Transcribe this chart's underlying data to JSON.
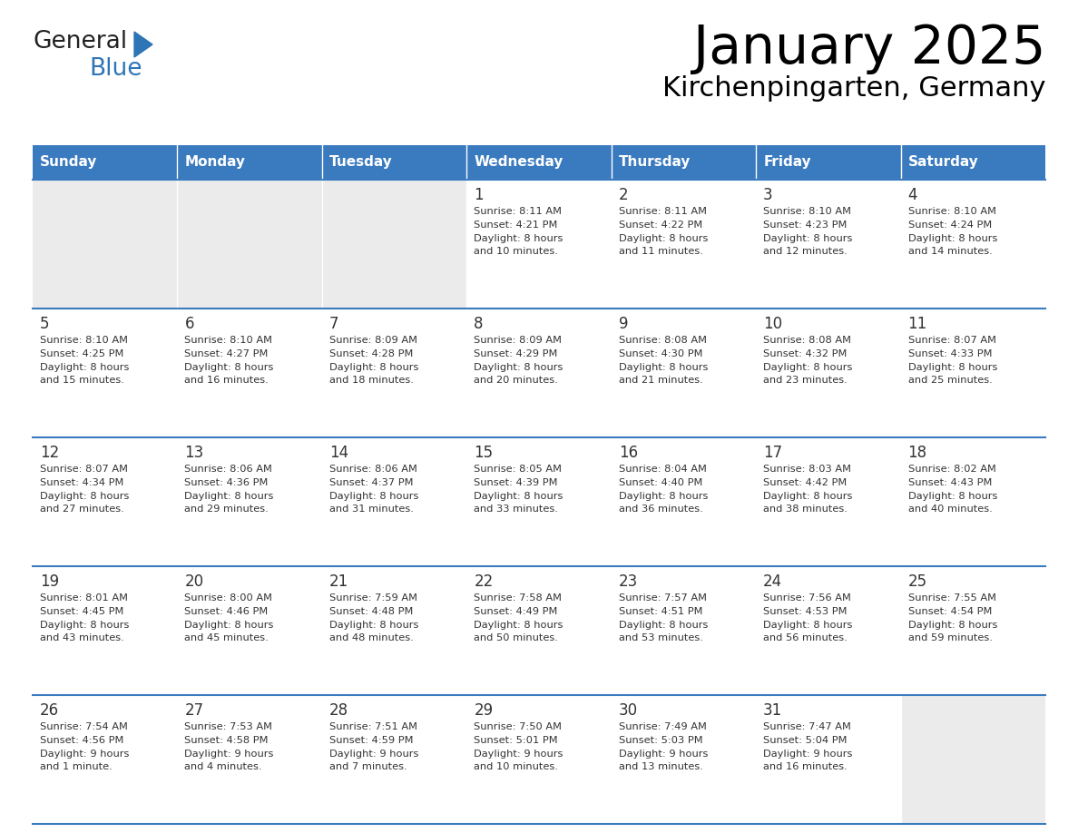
{
  "title": "January 2025",
  "subtitle": "Kirchenpingarten, Germany",
  "days_of_week": [
    "Sunday",
    "Monday",
    "Tuesday",
    "Wednesday",
    "Thursday",
    "Friday",
    "Saturday"
  ],
  "header_bg": "#3a7abf",
  "header_text_color": "#ffffff",
  "cell_bg_light": "#ebebeb",
  "cell_bg_white": "#ffffff",
  "cell_text_color": "#333333",
  "line_color": "#3a7abf",
  "calendar_data": [
    [
      {
        "day": null,
        "info": null
      },
      {
        "day": null,
        "info": null
      },
      {
        "day": null,
        "info": null
      },
      {
        "day": 1,
        "info": "Sunrise: 8:11 AM\nSunset: 4:21 PM\nDaylight: 8 hours\nand 10 minutes."
      },
      {
        "day": 2,
        "info": "Sunrise: 8:11 AM\nSunset: 4:22 PM\nDaylight: 8 hours\nand 11 minutes."
      },
      {
        "day": 3,
        "info": "Sunrise: 8:10 AM\nSunset: 4:23 PM\nDaylight: 8 hours\nand 12 minutes."
      },
      {
        "day": 4,
        "info": "Sunrise: 8:10 AM\nSunset: 4:24 PM\nDaylight: 8 hours\nand 14 minutes."
      }
    ],
    [
      {
        "day": 5,
        "info": "Sunrise: 8:10 AM\nSunset: 4:25 PM\nDaylight: 8 hours\nand 15 minutes."
      },
      {
        "day": 6,
        "info": "Sunrise: 8:10 AM\nSunset: 4:27 PM\nDaylight: 8 hours\nand 16 minutes."
      },
      {
        "day": 7,
        "info": "Sunrise: 8:09 AM\nSunset: 4:28 PM\nDaylight: 8 hours\nand 18 minutes."
      },
      {
        "day": 8,
        "info": "Sunrise: 8:09 AM\nSunset: 4:29 PM\nDaylight: 8 hours\nand 20 minutes."
      },
      {
        "day": 9,
        "info": "Sunrise: 8:08 AM\nSunset: 4:30 PM\nDaylight: 8 hours\nand 21 minutes."
      },
      {
        "day": 10,
        "info": "Sunrise: 8:08 AM\nSunset: 4:32 PM\nDaylight: 8 hours\nand 23 minutes."
      },
      {
        "day": 11,
        "info": "Sunrise: 8:07 AM\nSunset: 4:33 PM\nDaylight: 8 hours\nand 25 minutes."
      }
    ],
    [
      {
        "day": 12,
        "info": "Sunrise: 8:07 AM\nSunset: 4:34 PM\nDaylight: 8 hours\nand 27 minutes."
      },
      {
        "day": 13,
        "info": "Sunrise: 8:06 AM\nSunset: 4:36 PM\nDaylight: 8 hours\nand 29 minutes."
      },
      {
        "day": 14,
        "info": "Sunrise: 8:06 AM\nSunset: 4:37 PM\nDaylight: 8 hours\nand 31 minutes."
      },
      {
        "day": 15,
        "info": "Sunrise: 8:05 AM\nSunset: 4:39 PM\nDaylight: 8 hours\nand 33 minutes."
      },
      {
        "day": 16,
        "info": "Sunrise: 8:04 AM\nSunset: 4:40 PM\nDaylight: 8 hours\nand 36 minutes."
      },
      {
        "day": 17,
        "info": "Sunrise: 8:03 AM\nSunset: 4:42 PM\nDaylight: 8 hours\nand 38 minutes."
      },
      {
        "day": 18,
        "info": "Sunrise: 8:02 AM\nSunset: 4:43 PM\nDaylight: 8 hours\nand 40 minutes."
      }
    ],
    [
      {
        "day": 19,
        "info": "Sunrise: 8:01 AM\nSunset: 4:45 PM\nDaylight: 8 hours\nand 43 minutes."
      },
      {
        "day": 20,
        "info": "Sunrise: 8:00 AM\nSunset: 4:46 PM\nDaylight: 8 hours\nand 45 minutes."
      },
      {
        "day": 21,
        "info": "Sunrise: 7:59 AM\nSunset: 4:48 PM\nDaylight: 8 hours\nand 48 minutes."
      },
      {
        "day": 22,
        "info": "Sunrise: 7:58 AM\nSunset: 4:49 PM\nDaylight: 8 hours\nand 50 minutes."
      },
      {
        "day": 23,
        "info": "Sunrise: 7:57 AM\nSunset: 4:51 PM\nDaylight: 8 hours\nand 53 minutes."
      },
      {
        "day": 24,
        "info": "Sunrise: 7:56 AM\nSunset: 4:53 PM\nDaylight: 8 hours\nand 56 minutes."
      },
      {
        "day": 25,
        "info": "Sunrise: 7:55 AM\nSunset: 4:54 PM\nDaylight: 8 hours\nand 59 minutes."
      }
    ],
    [
      {
        "day": 26,
        "info": "Sunrise: 7:54 AM\nSunset: 4:56 PM\nDaylight: 9 hours\nand 1 minute."
      },
      {
        "day": 27,
        "info": "Sunrise: 7:53 AM\nSunset: 4:58 PM\nDaylight: 9 hours\nand 4 minutes."
      },
      {
        "day": 28,
        "info": "Sunrise: 7:51 AM\nSunset: 4:59 PM\nDaylight: 9 hours\nand 7 minutes."
      },
      {
        "day": 29,
        "info": "Sunrise: 7:50 AM\nSunset: 5:01 PM\nDaylight: 9 hours\nand 10 minutes."
      },
      {
        "day": 30,
        "info": "Sunrise: 7:49 AM\nSunset: 5:03 PM\nDaylight: 9 hours\nand 13 minutes."
      },
      {
        "day": 31,
        "info": "Sunrise: 7:47 AM\nSunset: 5:04 PM\nDaylight: 9 hours\nand 16 minutes."
      },
      {
        "day": null,
        "info": null
      }
    ]
  ],
  "logo_general_color": "#222222",
  "logo_blue_color": "#2e75b6",
  "logo_triangle_color": "#2e75b6"
}
